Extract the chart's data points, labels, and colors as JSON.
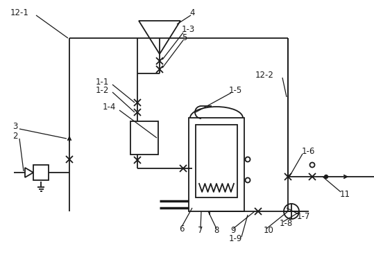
{
  "background": "#ffffff",
  "line_color": "#1a1a1a",
  "line_width": 1.3,
  "label_fontsize": 8.5
}
